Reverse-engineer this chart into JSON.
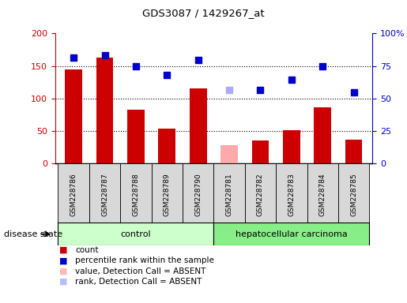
{
  "title": "GDS3087 / 1429267_at",
  "samples": [
    "GSM228786",
    "GSM228787",
    "GSM228788",
    "GSM228789",
    "GSM228790",
    "GSM228781",
    "GSM228782",
    "GSM228783",
    "GSM228784",
    "GSM228785"
  ],
  "count_values": [
    144,
    163,
    83,
    54,
    115,
    28,
    36,
    51,
    87,
    37
  ],
  "rank_values": [
    163,
    166,
    150,
    136,
    159,
    113,
    113,
    129,
    149,
    110
  ],
  "absent_flags": [
    false,
    false,
    false,
    false,
    false,
    true,
    false,
    false,
    false,
    false
  ],
  "count_color_normal": "#cc0000",
  "count_color_absent": "#ffaaaa",
  "rank_color_normal": "#0000cc",
  "rank_color_absent": "#aaaaff",
  "ylim_left": [
    0,
    200
  ],
  "ylim_right": [
    0,
    100
  ],
  "yticks_left": [
    0,
    50,
    100,
    150,
    200
  ],
  "yticks_right": [
    0,
    25,
    50,
    75,
    100
  ],
  "yticklabels_right": [
    "0",
    "25",
    "50",
    "75",
    "100%"
  ],
  "grid_lines": [
    50,
    100,
    150
  ],
  "control_indices": [
    0,
    1,
    2,
    3,
    4
  ],
  "carcinoma_indices": [
    5,
    6,
    7,
    8,
    9
  ],
  "control_label": "control",
  "carcinoma_label": "hepatocellular carcinoma",
  "disease_state_label": "disease state",
  "legend_entries": [
    {
      "label": "count",
      "color": "#cc0000"
    },
    {
      "label": "percentile rank within the sample",
      "color": "#0000cc"
    },
    {
      "label": "value, Detection Call = ABSENT",
      "color": "#ffbbbb"
    },
    {
      "label": "rank, Detection Call = ABSENT",
      "color": "#bbbbff"
    }
  ],
  "bar_width": 0.55,
  "marker_size": 6,
  "bg_color": "#d8d8d8",
  "plot_bg_color": "#ffffff",
  "group_color_control": "#ccffcc",
  "group_color_carcinoma": "#88ee88"
}
